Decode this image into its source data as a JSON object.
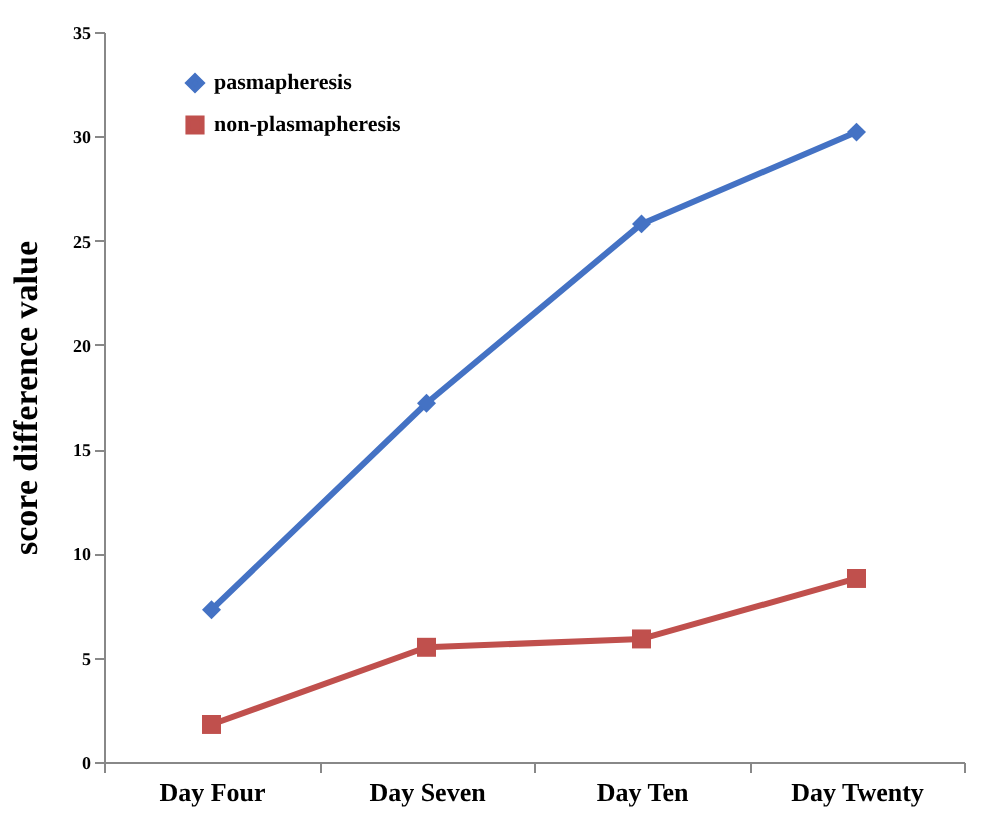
{
  "chart_data": {
    "type": "line",
    "ylabel": "score difference value",
    "categories": [
      "Day Four",
      "Day Seven",
      "Day Ten",
      "Day Twenty"
    ],
    "series": [
      {
        "name": "pasmapheresis",
        "color": "#4472c4",
        "marker": "diamond",
        "values": [
          7.3,
          17.2,
          25.8,
          30.2
        ]
      },
      {
        "name": "non-plasmapheresis",
        "color": "#c0504d",
        "marker": "square",
        "values": [
          1.8,
          5.5,
          5.9,
          8.8
        ]
      }
    ],
    "ylim": [
      0,
      35
    ],
    "yticks": [
      0,
      5,
      10,
      15,
      20,
      25,
      30,
      35
    ],
    "grid": false,
    "legend": "top left",
    "line_style": "solid"
  }
}
